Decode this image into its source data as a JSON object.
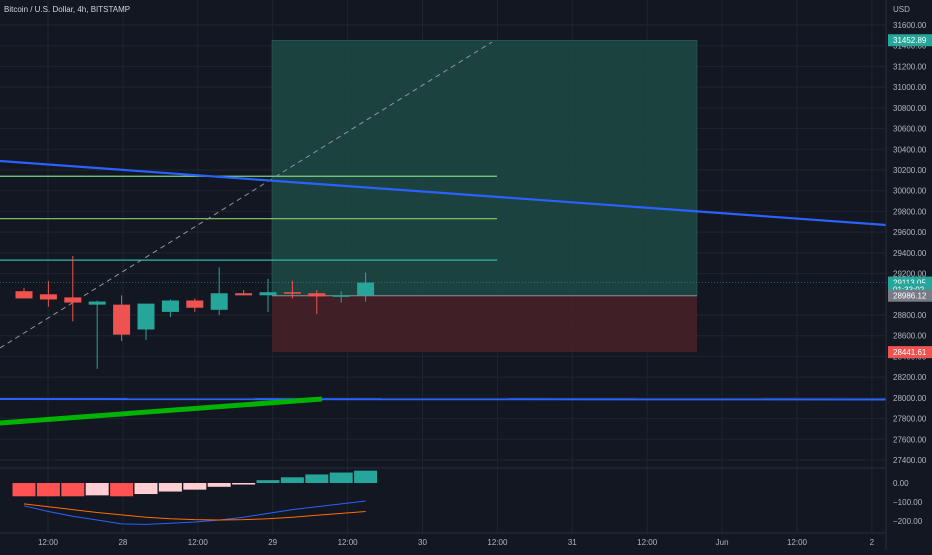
{
  "header": {
    "symbol_title": "Bitcoin / U.S. Dollar, 4h, BITSTAMP"
  },
  "currency": "USD",
  "colors": {
    "background": "#131722",
    "grid": "#1f2430",
    "axis_text": "#b2b5be",
    "bull": "#26a69a",
    "bear": "#ef5350",
    "trendline": "#2962ff",
    "green_line": "#00b300",
    "profit_zone": "#1d4a44",
    "loss_zone": "#4a2128",
    "hist_grow_pos": "#26a69a",
    "hist_fall_neg": "#ffcdd2",
    "hist_grow_neg": "#ff5252",
    "macd_line": "#2962ff",
    "signal_line": "#ff6d00"
  },
  "chart_data": [
    {
      "type": "candlestick",
      "title": "Bitcoin / U.S. Dollar, 4h, BITSTAMP",
      "y_unit": "USD",
      "ylim": [
        27300,
        31800
      ],
      "y_ticks": [
        31600,
        31400,
        31200,
        31000,
        30800,
        30600,
        30400,
        30200,
        30000,
        29800,
        29600,
        29400,
        29200,
        28800,
        28600,
        28400,
        28200,
        28000,
        27800,
        27600,
        27400
      ],
      "y_tick_labels": [
        "31600.00",
        "31400.00",
        "31200.00",
        "31000.00",
        "30800.00",
        "30600.00",
        "30400.00",
        "30200.00",
        "30000.00",
        "29800.00",
        "29600.00",
        "29400.00",
        "29200.00",
        "28800.00",
        "28600.00",
        "28400.00",
        "28200.00",
        "28000.00",
        "27800.00",
        "27600.00",
        "27400.00"
      ],
      "x_ticks": [
        "12:00",
        "28",
        "12:00",
        "29",
        "12:00",
        "30",
        "12:00",
        "31",
        "12:00",
        "Jun",
        "12:00",
        "2"
      ],
      "candles": [
        {
          "o": 29030,
          "h": 29060,
          "l": 28960,
          "c": 28960
        },
        {
          "o": 29000,
          "h": 29130,
          "l": 28880,
          "c": 28950
        },
        {
          "o": 28970,
          "h": 29370,
          "l": 28740,
          "c": 28920
        },
        {
          "o": 28900,
          "h": 28940,
          "l": 28280,
          "c": 28930
        },
        {
          "o": 28900,
          "h": 28990,
          "l": 28550,
          "c": 28610
        },
        {
          "o": 28660,
          "h": 28900,
          "l": 28560,
          "c": 28910
        },
        {
          "o": 28830,
          "h": 28950,
          "l": 28780,
          "c": 28940
        },
        {
          "o": 28940,
          "h": 28960,
          "l": 28830,
          "c": 28870
        },
        {
          "o": 28850,
          "h": 29260,
          "l": 28800,
          "c": 29010
        },
        {
          "o": 29010,
          "h": 29040,
          "l": 28990,
          "c": 28990
        },
        {
          "o": 28990,
          "h": 29150,
          "l": 28830,
          "c": 29020
        },
        {
          "o": 29020,
          "h": 29130,
          "l": 28960,
          "c": 29010
        },
        {
          "o": 29010,
          "h": 29040,
          "l": 28810,
          "c": 28980
        },
        {
          "o": 28980,
          "h": 29030,
          "l": 28920,
          "c": 28990
        },
        {
          "o": 28990,
          "h": 29210,
          "l": 28930,
          "c": 29113.05
        }
      ],
      "price_tags": [
        {
          "label": "31452.89",
          "value": 31452.89,
          "color": "#26a69a"
        },
        {
          "label": "29113.05",
          "value": 29113.05,
          "color": "#26a69a"
        },
        {
          "label": "01:33:02",
          "value": 29045,
          "color": "#26a69a"
        },
        {
          "label": "28986.12",
          "value": 28986.12,
          "color": "#787b86"
        },
        {
          "label": "28441.61",
          "value": 28441.61,
          "color": "#ef5350"
        }
      ],
      "position_tool": {
        "entry": 28986.12,
        "target": 31452.89,
        "stop": 28441.61,
        "levels": [
          30140,
          29730,
          29330
        ]
      }
    },
    {
      "type": "line",
      "title": "",
      "indicator": "MACD",
      "y_ticks": [
        0,
        -100,
        -200
      ],
      "y_tick_labels": [
        "0.00",
        "−100.00",
        "−200.00"
      ],
      "histogram": [
        -70,
        -70,
        -70,
        -65,
        -70,
        -58,
        -45,
        -35,
        -20,
        -8,
        15,
        30,
        45,
        55,
        65
      ],
      "macd": [
        -120,
        -150,
        -175,
        -195,
        -215,
        -218,
        -212,
        -205,
        -195,
        -180,
        -160,
        -140,
        -125,
        -110,
        -95
      ],
      "signal": [
        -110,
        -125,
        -140,
        -155,
        -168,
        -180,
        -188,
        -193,
        -195,
        -193,
        -188,
        -180,
        -170,
        -160,
        -150
      ]
    }
  ]
}
